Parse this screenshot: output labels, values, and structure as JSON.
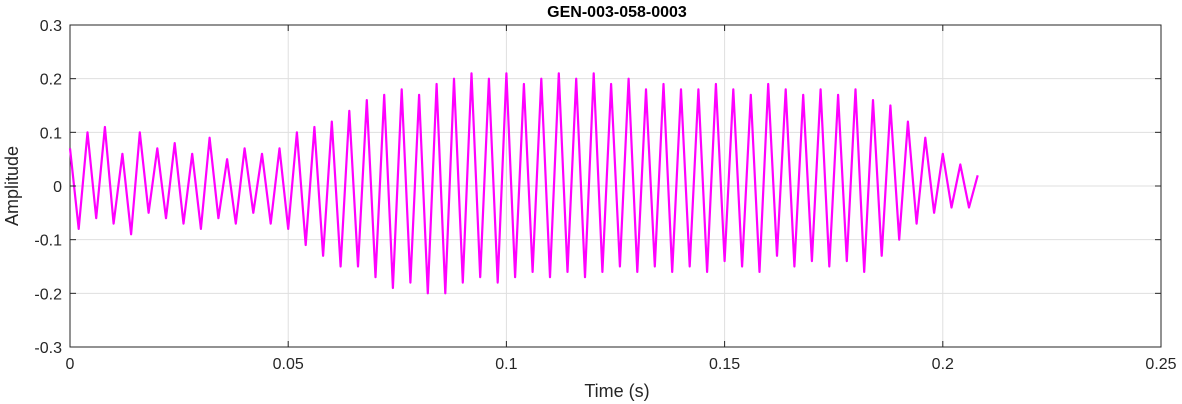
{
  "chart_data": {
    "type": "line",
    "title": "GEN-003-058-0003",
    "xlabel": "Time (s)",
    "ylabel": "Amplitude",
    "xlim": [
      0,
      0.25
    ],
    "ylim": [
      -0.3,
      0.3
    ],
    "xticks": [
      0,
      0.05,
      0.1,
      0.15,
      0.2,
      0.25
    ],
    "xtick_labels": [
      "0",
      "0.05",
      "0.1",
      "0.15",
      "0.2",
      "0.25"
    ],
    "yticks": [
      -0.3,
      -0.2,
      -0.1,
      0,
      0.1,
      0.2,
      0.3
    ],
    "ytick_labels": [
      "-0.3",
      "-0.2",
      "-0.1",
      "0",
      "0.1",
      "0.2",
      "0.3"
    ],
    "grid": true,
    "series": [
      {
        "color": "#ff00ff",
        "x": [
          0,
          0.002,
          0.004,
          0.006,
          0.008,
          0.01,
          0.012,
          0.014,
          0.016,
          0.018,
          0.02,
          0.022,
          0.024,
          0.026,
          0.028,
          0.03,
          0.032,
          0.034,
          0.036,
          0.038,
          0.04,
          0.042,
          0.044,
          0.046,
          0.048,
          0.05,
          0.052,
          0.054,
          0.056,
          0.058,
          0.06,
          0.062,
          0.064,
          0.066,
          0.068,
          0.07,
          0.072,
          0.074,
          0.076,
          0.078,
          0.08,
          0.082,
          0.084,
          0.086,
          0.088,
          0.09,
          0.092,
          0.094,
          0.096,
          0.098,
          0.1,
          0.102,
          0.104,
          0.106,
          0.108,
          0.11,
          0.112,
          0.114,
          0.116,
          0.118,
          0.12,
          0.122,
          0.124,
          0.126,
          0.128,
          0.13,
          0.132,
          0.134,
          0.136,
          0.138,
          0.14,
          0.142,
          0.144,
          0.146,
          0.148,
          0.15,
          0.152,
          0.154,
          0.156,
          0.158,
          0.16,
          0.162,
          0.164,
          0.166,
          0.168,
          0.17,
          0.172,
          0.174,
          0.176,
          0.178,
          0.18,
          0.182,
          0.184,
          0.186,
          0.188,
          0.19,
          0.192,
          0.194,
          0.196,
          0.198,
          0.2,
          0.202,
          0.204,
          0.206,
          0.208
        ],
        "y": [
          0.07,
          -0.08,
          0.1,
          -0.06,
          0.11,
          -0.07,
          0.06,
          -0.09,
          0.1,
          -0.05,
          0.07,
          -0.06,
          0.08,
          -0.07,
          0.06,
          -0.08,
          0.09,
          -0.06,
          0.05,
          -0.07,
          0.07,
          -0.05,
          0.06,
          -0.07,
          0.07,
          -0.08,
          0.1,
          -0.11,
          0.11,
          -0.13,
          0.12,
          -0.15,
          0.14,
          -0.15,
          0.16,
          -0.17,
          0.17,
          -0.19,
          0.18,
          -0.18,
          0.17,
          -0.2,
          0.19,
          -0.2,
          0.2,
          -0.18,
          0.21,
          -0.17,
          0.2,
          -0.18,
          0.21,
          -0.17,
          0.19,
          -0.16,
          0.2,
          -0.17,
          0.21,
          -0.16,
          0.2,
          -0.17,
          0.21,
          -0.16,
          0.19,
          -0.15,
          0.2,
          -0.16,
          0.18,
          -0.15,
          0.19,
          -0.16,
          0.18,
          -0.15,
          0.18,
          -0.16,
          0.19,
          -0.14,
          0.18,
          -0.15,
          0.17,
          -0.16,
          0.19,
          -0.13,
          0.18,
          -0.15,
          0.17,
          -0.14,
          0.18,
          -0.15,
          0.17,
          -0.14,
          0.18,
          -0.16,
          0.16,
          -0.13,
          0.15,
          -0.1,
          0.12,
          -0.07,
          0.09,
          -0.05,
          0.06,
          -0.04,
          0.04,
          -0.04,
          0.02
        ]
      }
    ]
  }
}
